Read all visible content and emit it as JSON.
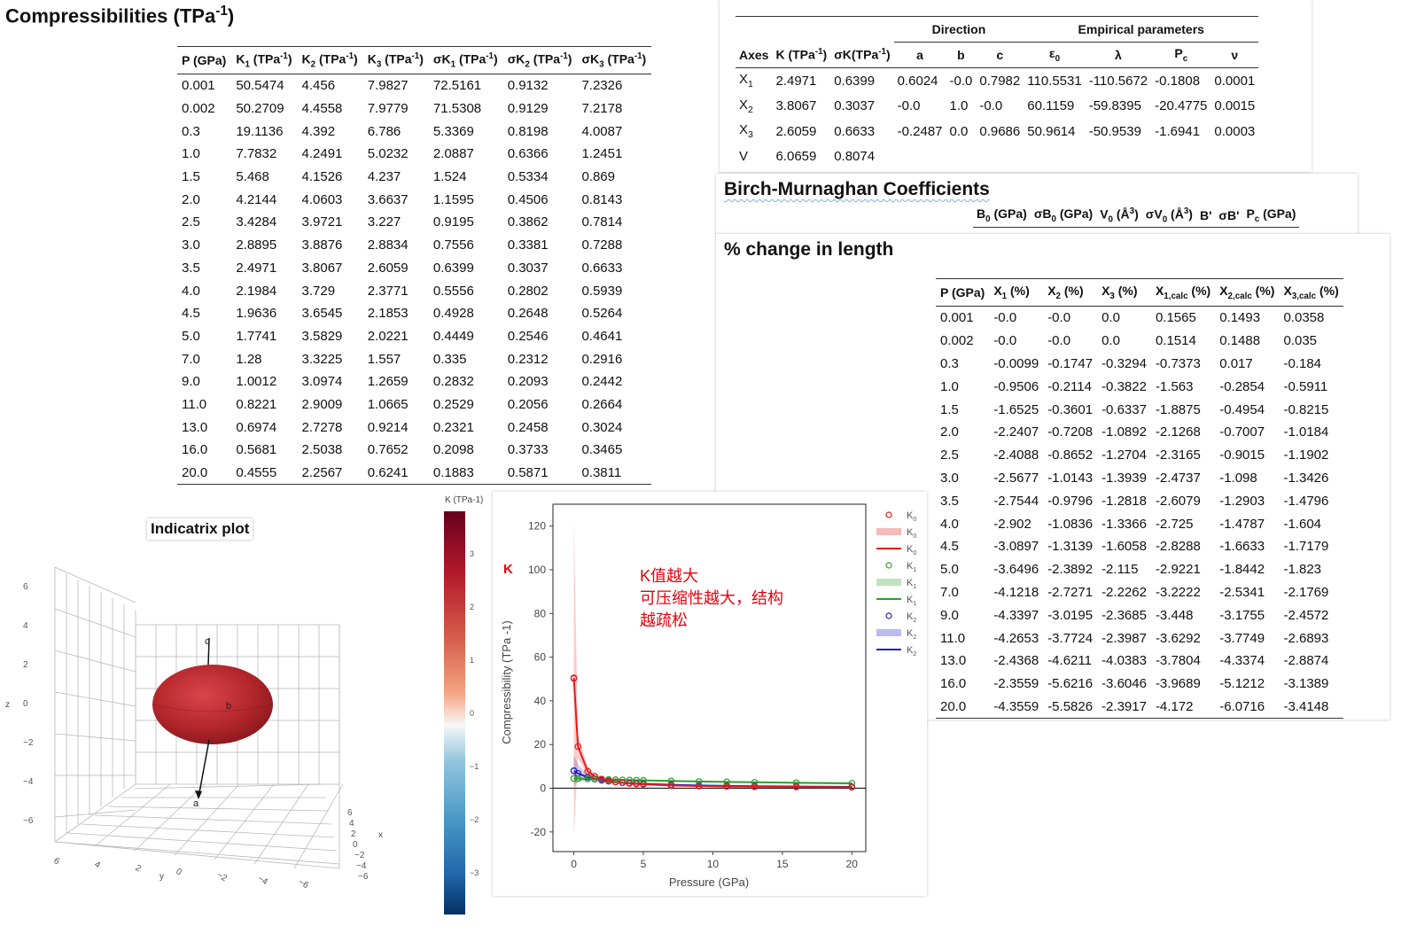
{
  "compressibilities": {
    "title": "Compressibilities (TPa",
    "title_sup": "-1",
    "title_end": ")",
    "columns": [
      "P (GPa)",
      "K1 (TPa-1)",
      "K2 (TPa-1)",
      "K3 (TPa-1)",
      "σK1 (TPa-1)",
      "σK2 (TPa-1)",
      "σK3 (TPa-1)"
    ],
    "rows": [
      [
        "0.001",
        "50.5474",
        "4.456",
        "7.9827",
        "72.5161",
        "0.9132",
        "7.2326"
      ],
      [
        "0.002",
        "50.2709",
        "4.4558",
        "7.9779",
        "71.5308",
        "0.9129",
        "7.2178"
      ],
      [
        "0.3",
        "19.1136",
        "4.392",
        "6.786",
        "5.3369",
        "0.8198",
        "4.0087"
      ],
      [
        "1.0",
        "7.7832",
        "4.2491",
        "5.0232",
        "2.0887",
        "0.6366",
        "1.2451"
      ],
      [
        "1.5",
        "5.468",
        "4.1526",
        "4.237",
        "1.524",
        "0.5334",
        "0.869"
      ],
      [
        "2.0",
        "4.2144",
        "4.0603",
        "3.6637",
        "1.1595",
        "0.4506",
        "0.8143"
      ],
      [
        "2.5",
        "3.4284",
        "3.9721",
        "3.227",
        "0.9195",
        "0.3862",
        "0.7814"
      ],
      [
        "3.0",
        "2.8895",
        "3.8876",
        "2.8834",
        "0.7556",
        "0.3381",
        "0.7288"
      ],
      [
        "3.5",
        "2.4971",
        "3.8067",
        "2.6059",
        "0.6399",
        "0.3037",
        "0.6633"
      ],
      [
        "4.0",
        "2.1984",
        "3.729",
        "2.3771",
        "0.5556",
        "0.2802",
        "0.5939"
      ],
      [
        "4.5",
        "1.9636",
        "3.6545",
        "2.1853",
        "0.4928",
        "0.2648",
        "0.5264"
      ],
      [
        "5.0",
        "1.7741",
        "3.5829",
        "2.0221",
        "0.4449",
        "0.2546",
        "0.4641"
      ],
      [
        "7.0",
        "1.28",
        "3.3225",
        "1.557",
        "0.335",
        "0.2312",
        "0.2916"
      ],
      [
        "9.0",
        "1.0012",
        "3.0974",
        "1.2659",
        "0.2832",
        "0.2093",
        "0.2442"
      ],
      [
        "11.0",
        "0.8221",
        "2.9009",
        "1.0665",
        "0.2529",
        "0.2056",
        "0.2664"
      ],
      [
        "13.0",
        "0.6974",
        "2.7278",
        "0.9214",
        "0.2321",
        "0.2458",
        "0.3024"
      ],
      [
        "16.0",
        "0.5681",
        "2.5038",
        "0.7652",
        "0.2098",
        "0.3733",
        "0.3465"
      ],
      [
        "20.0",
        "0.4555",
        "2.2567",
        "0.6241",
        "0.1883",
        "0.5871",
        "0.3811"
      ]
    ]
  },
  "lattice": {
    "group_direction": "Direction",
    "group_empirical": "Empirical parameters",
    "columns": [
      "Axes",
      "K (TPa-1)",
      "σK(TPa-1)",
      "a",
      "b",
      "c",
      "ε0",
      "λ",
      "Pc",
      "ν"
    ],
    "rows": [
      [
        "X1",
        "2.4971",
        "0.6399",
        "0.6024",
        "-0.0",
        "0.7982",
        "110.5531",
        "-110.5672",
        "-0.1808",
        "0.0001"
      ],
      [
        "X2",
        "3.8067",
        "0.3037",
        "-0.0",
        "1.0",
        "-0.0",
        "60.1159",
        "-59.8395",
        "-20.4775",
        "0.0015"
      ],
      [
        "X3",
        "2.6059",
        "0.6633",
        "-0.2487",
        "0.0",
        "0.9686",
        "50.9614",
        "-50.9539",
        "-1.6941",
        "0.0003"
      ],
      [
        "V",
        "6.0659",
        "0.8074",
        "",
        "",
        "",
        "",
        "",
        "",
        ""
      ]
    ]
  },
  "birch": {
    "title": "Birch-Murnaghan Coefficients",
    "columns": [
      "B0 (GPa)",
      "σB0 (GPa)",
      "V0 (Å3)",
      "σV0 (Å3)",
      "B'",
      "σB'",
      "Pc (GPa)"
    ]
  },
  "change": {
    "title": "% change in length",
    "columns": [
      "P (GPa)",
      "X1 (%)",
      "X2 (%)",
      "X3 (%)",
      "X1,calc (%)",
      "X2,calc (%)",
      "X3,calc (%)"
    ],
    "rows": [
      [
        "0.001",
        "-0.0",
        "-0.0",
        "0.0",
        "0.1565",
        "0.1493",
        "0.0358"
      ],
      [
        "0.002",
        "-0.0",
        "-0.0",
        "0.0",
        "0.1514",
        "0.1488",
        "0.035"
      ],
      [
        "0.3",
        "-0.0099",
        "-0.1747",
        "-0.3294",
        "-0.7373",
        "0.017",
        "-0.184"
      ],
      [
        "1.0",
        "-0.9506",
        "-0.2114",
        "-0.3822",
        "-1.563",
        "-0.2854",
        "-0.5911"
      ],
      [
        "1.5",
        "-1.6525",
        "-0.3601",
        "-0.6337",
        "-1.8875",
        "-0.4954",
        "-0.8215"
      ],
      [
        "2.0",
        "-2.2407",
        "-0.7208",
        "-1.0892",
        "-2.1268",
        "-0.7007",
        "-1.0184"
      ],
      [
        "2.5",
        "-2.4088",
        "-0.8652",
        "-1.2704",
        "-2.3165",
        "-0.9015",
        "-1.1902"
      ],
      [
        "3.0",
        "-2.5677",
        "-1.0143",
        "-1.3939",
        "-2.4737",
        "-1.098",
        "-1.3426"
      ],
      [
        "3.5",
        "-2.7544",
        "-0.9796",
        "-1.2818",
        "-2.6079",
        "-1.2903",
        "-1.4796"
      ],
      [
        "4.0",
        "-2.902",
        "-1.0836",
        "-1.3366",
        "-2.725",
        "-1.4787",
        "-1.604"
      ],
      [
        "4.5",
        "-3.0897",
        "-1.3139",
        "-1.6058",
        "-2.8288",
        "-1.6633",
        "-1.7179"
      ],
      [
        "5.0",
        "-3.6496",
        "-2.3892",
        "-2.115",
        "-2.9221",
        "-1.8442",
        "-1.823"
      ],
      [
        "7.0",
        "-4.1218",
        "-2.7271",
        "-2.2262",
        "-3.2222",
        "-2.5341",
        "-2.1769"
      ],
      [
        "9.0",
        "-4.3397",
        "-3.0195",
        "-2.3685",
        "-3.448",
        "-3.1755",
        "-2.4572"
      ],
      [
        "11.0",
        "-4.2653",
        "-3.7724",
        "-2.3987",
        "-3.6292",
        "-3.7749",
        "-2.6893"
      ],
      [
        "13.0",
        "-2.4368",
        "-4.6211",
        "-4.0383",
        "-3.7804",
        "-4.3374",
        "-2.8874"
      ],
      [
        "16.0",
        "-2.3559",
        "-5.6216",
        "-3.6046",
        "-3.9689",
        "-5.1212",
        "-3.1389"
      ],
      [
        "20.0",
        "-4.3559",
        "-5.5826",
        "-2.3917",
        "-4.172",
        "-6.0716",
        "-3.4148"
      ]
    ]
  },
  "indicatrix": {
    "title": "Indicatrix plot",
    "colorbar_label": "K (TPa-1)",
    "colorbar_ticks": [
      "3",
      "2",
      "1",
      "0",
      "−1",
      "−2",
      "−3"
    ],
    "z_label": "z",
    "x_label": "x",
    "y_label": "y",
    "z_ticks": [
      "6",
      "4",
      "2",
      "0",
      "−2",
      "−4",
      "−6"
    ],
    "y_ticks": [
      "6",
      "4",
      "2",
      "0",
      "−2",
      "−4",
      "−6"
    ],
    "x_ticks": [
      "6",
      "4",
      "2",
      "0",
      "−2",
      "−4",
      "−6"
    ],
    "axis_labels": [
      "a",
      "b",
      "c"
    ],
    "colors": {
      "ellipsoid": "#b8262d",
      "cmap_top": "#67001f",
      "cmap_mid": "#f7f7f7",
      "cmap_bottom": "#053061"
    }
  },
  "plot": {
    "ylabel": "Compressibility (TPa -1)",
    "xlabel": "Pressure (GPa)",
    "annotation_k": "K",
    "annotation_lines": [
      "K值越大",
      "可压缩性越大，结构",
      "越疏松"
    ],
    "legend": [
      "K0",
      "K0",
      "K0",
      "K1",
      "K1",
      "K1",
      "K2",
      "K2",
      "K2"
    ],
    "colors": {
      "k0": "#e41a1c",
      "k1": "#2ca02c",
      "k2": "#1f1fbf",
      "annotation": "#e8000b"
    }
  },
  "chart_data": {
    "type": "line",
    "xlabel": "Pressure (GPa)",
    "ylabel": "Compressibility (TPa -1)",
    "xlim": [
      -1.5,
      21
    ],
    "ylim": [
      -29,
      130
    ],
    "xticks": [
      0,
      5,
      10,
      15,
      20
    ],
    "yticks": [
      -20,
      0,
      20,
      40,
      60,
      80,
      100,
      120
    ],
    "x": [
      0.001,
      0.002,
      0.3,
      1.0,
      1.5,
      2.0,
      2.5,
      3.0,
      3.5,
      4.0,
      4.5,
      5.0,
      7.0,
      9.0,
      11.0,
      13.0,
      16.0,
      20.0
    ],
    "series": [
      {
        "name": "K0",
        "values": [
          50.5474,
          50.2709,
          19.1136,
          7.7832,
          5.468,
          4.2144,
          3.4284,
          2.8895,
          2.4971,
          2.1984,
          1.9636,
          1.7741,
          1.28,
          1.0012,
          0.8221,
          0.6974,
          0.5681,
          0.4555
        ],
        "sigma": [
          72.5161,
          71.5308,
          5.3369,
          2.0887,
          1.524,
          1.1595,
          0.9195,
          0.7556,
          0.6399,
          0.5556,
          0.4928,
          0.4449,
          0.335,
          0.2832,
          0.2529,
          0.2321,
          0.2098,
          0.1883
        ]
      },
      {
        "name": "K1",
        "values": [
          4.456,
          4.4558,
          4.392,
          4.2491,
          4.1526,
          4.0603,
          3.9721,
          3.8876,
          3.8067,
          3.729,
          3.6545,
          3.5829,
          3.3225,
          3.0974,
          2.9009,
          2.7278,
          2.5038,
          2.2567
        ],
        "sigma": [
          0.9132,
          0.9129,
          0.8198,
          0.6366,
          0.5334,
          0.4506,
          0.3862,
          0.3381,
          0.3037,
          0.2802,
          0.2648,
          0.2546,
          0.2312,
          0.2093,
          0.2056,
          0.2458,
          0.3733,
          0.5871
        ]
      },
      {
        "name": "K2",
        "values": [
          7.9827,
          7.9779,
          6.786,
          5.0232,
          4.237,
          3.6637,
          3.227,
          2.8834,
          2.6059,
          2.3771,
          2.1853,
          2.0221,
          1.557,
          1.2659,
          1.0665,
          0.9214,
          0.7652,
          0.6241
        ],
        "sigma": [
          7.2326,
          7.2178,
          4.0087,
          1.2451,
          0.869,
          0.8143,
          0.7814,
          0.7288,
          0.6633,
          0.5939,
          0.5264,
          0.4641,
          0.2916,
          0.2442,
          0.2664,
          0.3024,
          0.3465,
          0.3811
        ]
      }
    ]
  }
}
